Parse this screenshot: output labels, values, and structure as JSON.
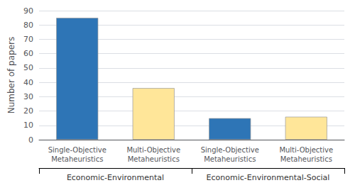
{
  "chart_data": {
    "type": "bar",
    "categories": [
      "Single-Objective\nMetaheuristics",
      "Multi-Objective\nMetaheuristics",
      "Single-Objective\nMetaheuristics",
      "Multi-Objective\nMetaheuristics"
    ],
    "values": [
      85,
      36,
      15,
      16
    ],
    "colors": [
      "#2E75B6",
      "#FFE699",
      "#2E75B6",
      "#FFE699"
    ],
    "group_labels": [
      "Economic-Environmental",
      "Economic-Environmental-Social"
    ],
    "ylabel": "Number of papers",
    "ylim": [
      0,
      90
    ],
    "yticks": [
      0,
      10,
      20,
      30,
      40,
      50,
      60,
      70,
      80,
      90
    ],
    "grid": true
  }
}
